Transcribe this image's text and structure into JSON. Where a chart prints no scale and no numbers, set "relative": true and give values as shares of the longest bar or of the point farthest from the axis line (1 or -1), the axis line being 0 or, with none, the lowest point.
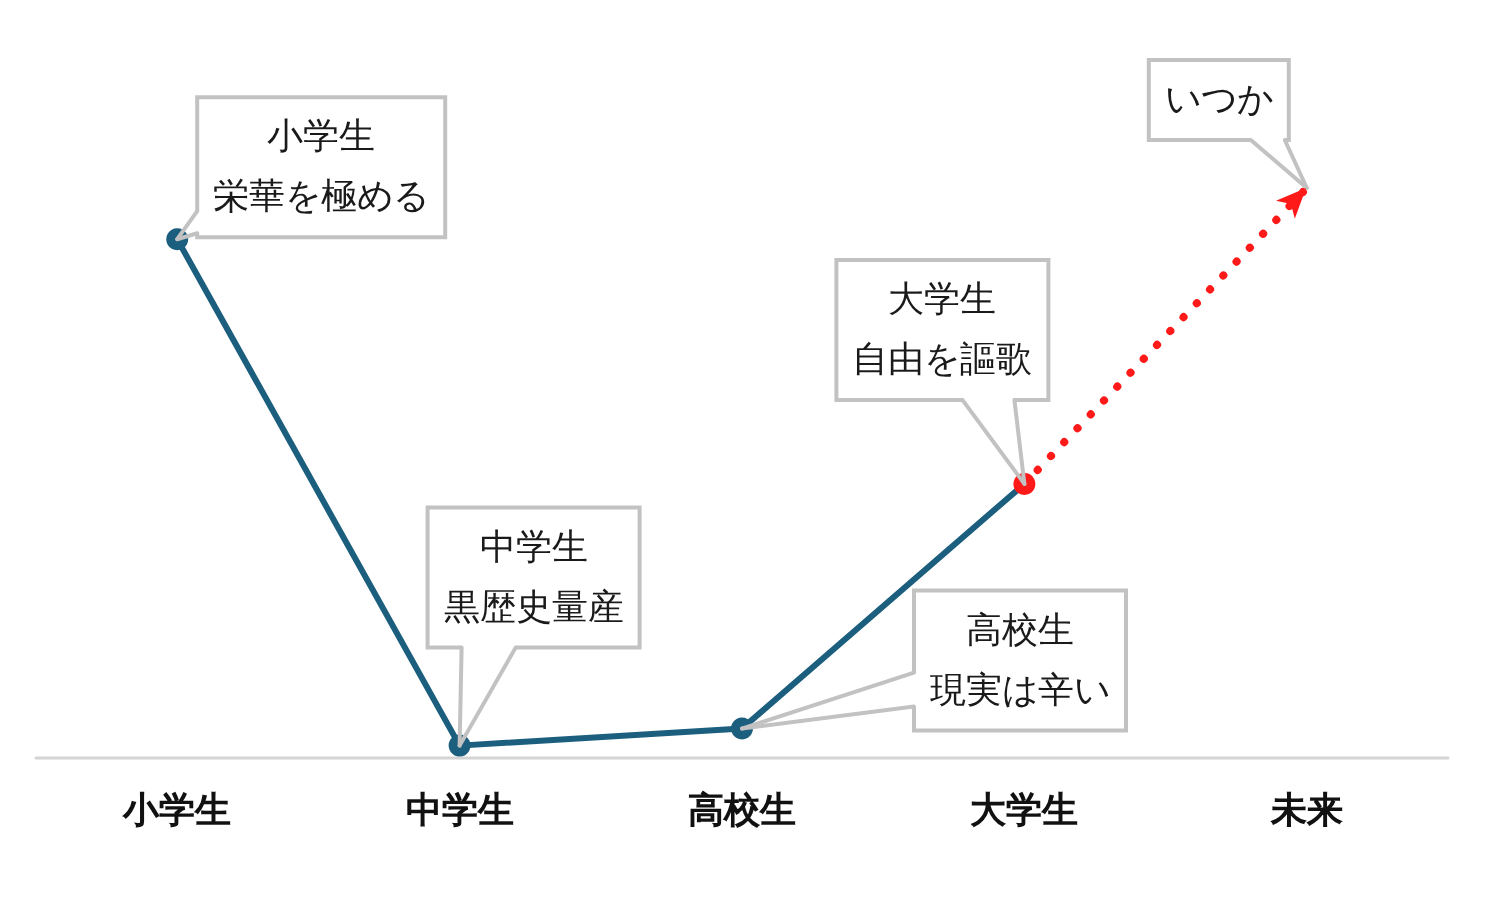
{
  "chart_data": {
    "type": "line",
    "relative": true,
    "grid": false,
    "categories": [
      "小学生",
      "中学生",
      "高校生",
      "大学生",
      "未来"
    ],
    "series": [
      {
        "color": "#1b5e7e",
        "colors": [
          "#1b5e7e",
          "#1b5e7e",
          "#1b5e7e",
          "#ff1a1a",
          "#1b5e7e"
        ],
        "values": [
          0.91,
          0.02,
          0.05,
          0.48,
          null
        ],
        "marker": "circle",
        "line_style": "solid"
      },
      {
        "color": "#ff1a1a",
        "values": [
          null,
          null,
          null,
          0.48,
          1
        ],
        "marker": "none",
        "line_style": "dotted"
      }
    ],
    "annotations": [
      "小学生",
      {
        "text": "栄華を極める",
        "x": "小学生",
        "y": 0.91
      },
      "中学生",
      {
        "text": "黒歴史量産",
        "x": "中学生",
        "y": 0.02
      },
      "高校生",
      {
        "text": "現実は辛い",
        "x": "高校生",
        "y": 0.05
      },
      "大学生",
      {
        "text": "自由を謳歌",
        "x": "大学生",
        "y": 0.48
      },
      {
        "text": "いつか",
        "x": "未来",
        "y": 1
      }
    ]
  }
}
